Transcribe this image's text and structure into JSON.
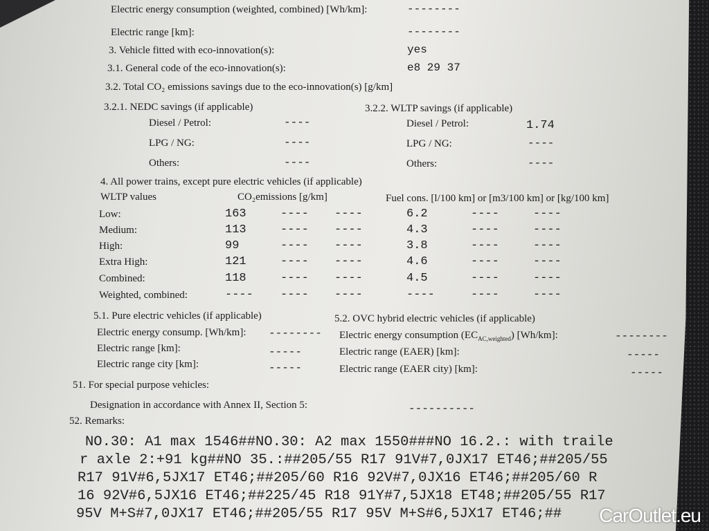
{
  "sec2": {
    "ec_label": "Electric energy consumption (weighted, combined) [Wh/km]:",
    "ec_value": "--------",
    "range_label": "Electric range [km]:",
    "range_value": "--------"
  },
  "sec3": {
    "fitted_label": "3. Vehicle fitted with eco-innovation(s):",
    "fitted_value": "yes",
    "code_label": "3.1. General code of the eco-innovation(s):",
    "code_value": "e8 29 37",
    "total_label": "3.2. Total CO₂ emissions savings due to the eco-innovation(s) [g/km]",
    "nedc_title": "3.2.1. NEDC savings (if applicable)",
    "wltp_title": "3.2.2. WLTP savings (if applicable)",
    "nedc": [
      {
        "label": "Diesel / Petrol:",
        "value": "----"
      },
      {
        "label": "LPG / NG:",
        "value": "----"
      },
      {
        "label": "Others:",
        "value": "----"
      }
    ],
    "wltp": [
      {
        "label": "Diesel / Petrol:",
        "value": "1.74"
      },
      {
        "label": "LPG / NG:",
        "value": "----"
      },
      {
        "label": "Others:",
        "value": "----"
      }
    ]
  },
  "sec4": {
    "title": "4. All power trains, except pure electric vehicles (if applicable)",
    "col_values": "WLTP values",
    "col_co2": "CO₂emissions [g/km]",
    "col_fuel": "Fuel cons. [l/100 km] or [m3/100 km] or [kg/100 km]",
    "rows": [
      {
        "label": "Low:",
        "co2": "163",
        "co2b": "----",
        "co2c": "----",
        "fuel": "6.2",
        "fuelb": "----",
        "fuelc": "----"
      },
      {
        "label": "Medium:",
        "co2": "113",
        "co2b": "----",
        "co2c": "----",
        "fuel": "4.3",
        "fuelb": "----",
        "fuelc": "----"
      },
      {
        "label": "High:",
        "co2": "99",
        "co2b": "----",
        "co2c": "----",
        "fuel": "3.8",
        "fuelb": "----",
        "fuelc": "----"
      },
      {
        "label": "Extra High:",
        "co2": "121",
        "co2b": "----",
        "co2c": "----",
        "fuel": "4.6",
        "fuelb": "----",
        "fuelc": "----"
      },
      {
        "label": "Combined:",
        "co2": "118",
        "co2b": "----",
        "co2c": "----",
        "fuel": "4.5",
        "fuelb": "----",
        "fuelc": "----"
      },
      {
        "label": "Weighted, combined:",
        "co2": "----",
        "co2b": "----",
        "co2c": "----",
        "fuel": "----",
        "fuelb": "----",
        "fuelc": "----"
      }
    ]
  },
  "sec5": {
    "pev_title": "5.1. Pure electric vehicles (if applicable)",
    "ovc_title": "5.2. OVC hybrid electric vehicles (if applicable)",
    "pev": [
      {
        "label": "Electric energy consump. [Wh/km]:",
        "value": "--------"
      },
      {
        "label": "Electric range [km]:",
        "value": "-----"
      },
      {
        "label": "Electric range city [km]:",
        "value": "-----"
      }
    ],
    "ovc_ec_label": "Electric energy consumption (EC",
    "ovc_ec_sub": "AC,weighted",
    "ovc_ec_unit": ") [Wh/km]:",
    "ovc_ec_value": "--------",
    "ovc": [
      {
        "label": "Electric range (EAER) [km]:",
        "value": "-----"
      },
      {
        "label": "Electric range (EAER city) [km]:",
        "value": "-----"
      }
    ]
  },
  "sec51": {
    "title": "51. For special purpose vehicles:",
    "designation_label": "Designation in accordance with Annex II, Section 5:",
    "designation_value": "----------"
  },
  "sec52": {
    "title": "52. Remarks:",
    "lines": [
      "NO.30: A1 max 1546##NO.30: A2 max 1550###NO 16.2.: with traile",
      "r axle 2:+91 kg##NO 35.:##205/55 R17 91V#7,0JX17 ET46;##205/55",
      "R17 91V#6,5JX17 ET46;##205/60 R16 92V#7,0JX16 ET46;##205/60 R",
      "16 92V#6,5JX16 ET46;##225/45 R18 91Y#7,5JX18 ET48;##205/55 R17",
      "95V M+S#7,0JX17 ET46;##205/55 R17 95V M+S#6,5JX17 ET46;##"
    ]
  },
  "watermark": "CarOutlet.eu"
}
